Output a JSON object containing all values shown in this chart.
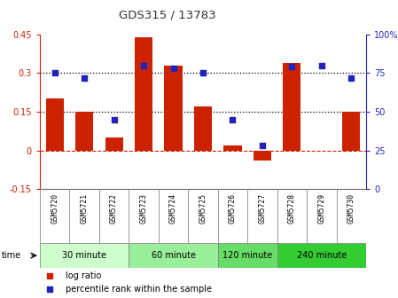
{
  "title": "GDS315 / 13783",
  "samples": [
    "GSM5720",
    "GSM5721",
    "GSM5722",
    "GSM5723",
    "GSM5724",
    "GSM5725",
    "GSM5726",
    "GSM5727",
    "GSM5728",
    "GSM5729",
    "GSM5730"
  ],
  "log_ratio": [
    0.2,
    0.15,
    0.05,
    0.44,
    0.33,
    0.17,
    0.02,
    -0.04,
    0.34,
    0.0,
    0.15
  ],
  "percentile": [
    75,
    72,
    45,
    80,
    78,
    75,
    45,
    28,
    79,
    80,
    72
  ],
  "ylim_left": [
    -0.15,
    0.45
  ],
  "ylim_right": [
    0,
    100
  ],
  "yticks_left": [
    -0.15,
    0,
    0.15,
    0.3,
    0.45
  ],
  "yticks_right": [
    0,
    25,
    50,
    75,
    100
  ],
  "ytick_labels_right": [
    "0",
    "25",
    "50",
    "75",
    "100%"
  ],
  "hlines": [
    0.15,
    0.3
  ],
  "bar_color": "#cc2200",
  "dot_color": "#2222bb",
  "zero_line_color": "#cc2200",
  "groups": [
    {
      "label": "30 minute",
      "start": 0,
      "end": 3,
      "color": "#ccffcc"
    },
    {
      "label": "60 minute",
      "start": 3,
      "end": 6,
      "color": "#99ee99"
    },
    {
      "label": "120 minute",
      "start": 6,
      "end": 8,
      "color": "#66dd66"
    },
    {
      "label": "240 minute",
      "start": 8,
      "end": 11,
      "color": "#33cc33"
    }
  ],
  "time_label": "time",
  "title_color": "#333333",
  "left_axis_color": "#cc2200",
  "right_axis_color": "#2222bb",
  "bg_color": "#ffffff",
  "plot_bg_color": "#ffffff",
  "sample_cell_color": "#cccccc",
  "sample_border_color": "#888888"
}
